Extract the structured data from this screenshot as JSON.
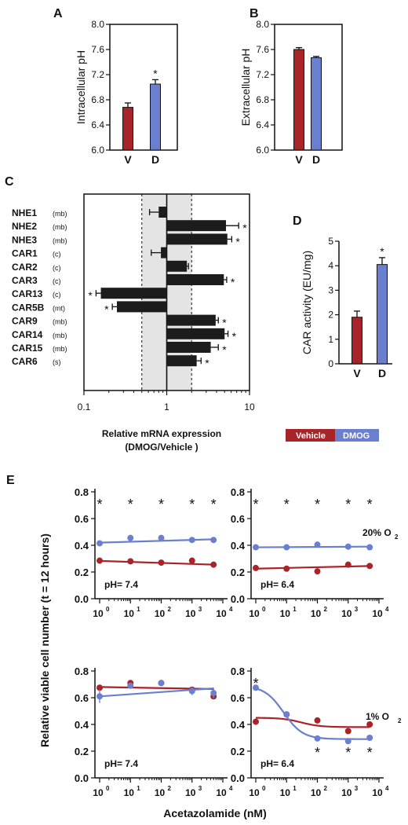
{
  "colors": {
    "vehicle": "#a82428",
    "dmog": "#6a7fd0",
    "band": "#e4e4e4",
    "black": "#1c1c1c"
  },
  "legend": {
    "vehicle": "Vehicle",
    "dmog": "DMOG"
  },
  "chart_data": [
    {
      "id": "A",
      "type": "bar",
      "panel_label": "A",
      "categories": [
        "V",
        "D"
      ],
      "values": [
        6.68,
        7.05
      ],
      "errors": [
        0.07,
        0.07
      ],
      "significant": [
        false,
        true
      ],
      "ylabel": "Intracellular pH",
      "ylim": [
        6.0,
        8.0
      ],
      "yticks": [
        "6.0",
        "6.4",
        "6.8",
        "7.2",
        "7.6",
        "8.0"
      ]
    },
    {
      "id": "B",
      "type": "bar",
      "panel_label": "B",
      "categories": [
        "V",
        "D"
      ],
      "values": [
        7.6,
        7.47
      ],
      "errors": [
        0.03,
        0.02
      ],
      "significant": [
        false,
        false
      ],
      "ylabel": "Extracellular pH",
      "ylim": [
        6.0,
        8.0
      ],
      "yticks": [
        "6.0",
        "6.4",
        "6.8",
        "7.2",
        "7.6",
        "8.0"
      ]
    },
    {
      "id": "C",
      "type": "bar",
      "orientation": "horizontal",
      "panel_label": "C",
      "xscale": "log",
      "xlim": [
        0.1,
        10
      ],
      "xticks": [
        "0.1",
        "1",
        "10"
      ],
      "band": [
        0.5,
        2
      ],
      "xlabel_line1": "Relative mRNA expression",
      "xlabel_line2": "(DMOG/Vehicle )",
      "genes": [
        {
          "name": "NHE1",
          "loc": "(mb)",
          "value": 0.8,
          "error": 0.18,
          "sig": false
        },
        {
          "name": "NHE2",
          "loc": "(mb)",
          "value": 5.2,
          "error": 2.2,
          "sig": true
        },
        {
          "name": "NHE3",
          "loc": "(mb)",
          "value": 5.4,
          "error": 0.7,
          "sig": true
        },
        {
          "name": "CAR1",
          "loc": "(c)",
          "value": 0.85,
          "error": 0.2,
          "sig": false
        },
        {
          "name": "CAR2",
          "loc": "(c)",
          "value": 1.75,
          "error": 0.08,
          "sig": false
        },
        {
          "name": "CAR3",
          "loc": "(c)",
          "value": 4.9,
          "error": 0.4,
          "sig": true
        },
        {
          "name": "CAR13",
          "loc": "(c)",
          "value": 0.16,
          "error": 0.02,
          "sig": true
        },
        {
          "name": "CAR5B",
          "loc": "(mt)",
          "value": 0.25,
          "error": 0.03,
          "sig": true
        },
        {
          "name": "CAR9",
          "loc": "(mb)",
          "value": 3.9,
          "error": 0.3,
          "sig": true
        },
        {
          "name": "CAR14",
          "loc": "(mb)",
          "value": 5.0,
          "error": 0.5,
          "sig": true
        },
        {
          "name": "CAR15",
          "loc": "(mb)",
          "value": 3.4,
          "error": 0.8,
          "sig": true
        },
        {
          "name": "CAR6",
          "loc": "(s)",
          "value": 2.3,
          "error": 0.3,
          "sig": true
        }
      ]
    },
    {
      "id": "D",
      "type": "bar",
      "panel_label": "D",
      "categories": [
        "V",
        "D"
      ],
      "values": [
        1.9,
        4.05
      ],
      "errors": [
        0.25,
        0.28
      ],
      "significant": [
        false,
        true
      ],
      "ylabel": "CAR activity (EU/mg)",
      "ylim": [
        0,
        5
      ],
      "yticks": [
        "0",
        "1",
        "2",
        "3",
        "4",
        "5"
      ]
    },
    {
      "id": "E",
      "type": "scatter",
      "panel_label": "E",
      "xscale": "log",
      "xlim": [
        1,
        10000
      ],
      "ylabel": "Relative viable cell number (t = 12 hours)",
      "xlabel": "Acetazolamide (nM)",
      "yticks": [
        "0.0",
        "0.2",
        "0.4",
        "0.6",
        "0.8"
      ],
      "ylim": [
        0,
        0.8
      ],
      "x": [
        1,
        10,
        100,
        1000,
        5000
      ],
      "panels": [
        {
          "ph": "pH= 7.4",
          "o2": "",
          "vehicle": {
            "y": [
              0.285,
              0.28,
              0.27,
              0.285,
              0.255
            ],
            "err": [
              0.005,
              0.005,
              0.005,
              0.005,
              0.005
            ],
            "fit": [
              0.283,
              0.255
            ]
          },
          "dmog": {
            "y": [
              0.415,
              0.455,
              0.455,
              0.44,
              0.44
            ],
            "err": [
              0.01,
              0.005,
              0.005,
              0.005,
              0.005
            ],
            "fit": [
              0.42,
              0.445
            ]
          },
          "stars_above": [
            1,
            10,
            100,
            1000,
            5000
          ],
          "stars_below": [],
          "fit": "linear"
        },
        {
          "ph": "pH= 6.4",
          "o2": "20% O",
          "vehicle": {
            "y": [
              0.23,
              0.225,
              0.205,
              0.255,
              0.245
            ],
            "err": [
              0.005,
              0.005,
              0.005,
              0.005,
              0.005
            ],
            "fit": [
              0.225,
              0.245
            ]
          },
          "dmog": {
            "y": [
              0.385,
              0.385,
              0.405,
              0.39,
              0.385
            ],
            "err": [
              0.005,
              0.005,
              0.005,
              0.005,
              0.005
            ],
            "fit": [
              0.385,
              0.39
            ]
          },
          "stars_above": [
            1,
            10,
            100,
            1000,
            5000
          ],
          "stars_below": [],
          "fit": "linear"
        },
        {
          "ph": "pH= 7.4",
          "o2": "",
          "vehicle": {
            "y": [
              0.675,
              0.71,
              0.71,
              0.66,
              0.61
            ],
            "err": [
              0.01,
              0.01,
              0.01,
              0.01,
              0.02
            ],
            "fit": [
              0.68,
              0.665
            ]
          },
          "dmog": {
            "y": [
              0.61,
              0.69,
              0.71,
              0.65,
              0.635
            ],
            "err": [
              0.05,
              0.01,
              0.01,
              0.03,
              0.04
            ],
            "fit": [
              0.61,
              0.67
            ]
          },
          "stars_above": [],
          "stars_below": [],
          "fit": "linear"
        },
        {
          "ph": "pH= 6.4",
          "o2": "1% O",
          "vehicle": {
            "y": [
              0.42,
              0.475,
              0.43,
              0.35,
              0.4
            ],
            "err": [
              0.005,
              0.005,
              0.005,
              0.01,
              0.005
            ],
            "fit_top": 0.45,
            "fit_bottom": 0.38,
            "fit_ec50": 30
          },
          "dmog": {
            "y": [
              0.675,
              0.475,
              0.295,
              0.275,
              0.3
            ],
            "err": [
              0.005,
              0.01,
              0.005,
              0.01,
              0.005
            ],
            "fit_top": 0.69,
            "fit_bottom": 0.29,
            "fit_ec50": 8
          },
          "stars_above": [
            1
          ],
          "stars_below": [
            100,
            1000,
            5000
          ],
          "fit": "sigmoid"
        }
      ]
    }
  ]
}
